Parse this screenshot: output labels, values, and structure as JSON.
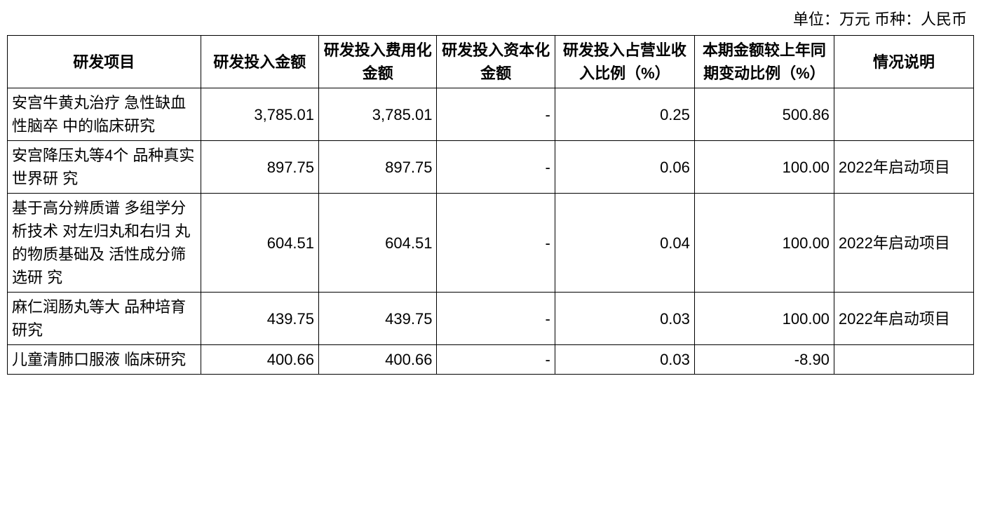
{
  "unit_line": "单位：万元 币种：人民币",
  "table": {
    "columns": [
      "研发项目",
      "研发投入金额",
      "研发投入费用化金额",
      "研发投入资本化金额",
      "研发投入占营业收入比例（%）",
      "本期金额较上年同期变动比例（%）",
      "情况说明"
    ],
    "rows": [
      {
        "project": "安宫牛黄丸治疗 急性缺血性脑卒 中的临床研究",
        "amount": "3,785.01",
        "expense": "3,785.01",
        "capital": "-",
        "ratio": "0.25",
        "change": "500.86",
        "note": ""
      },
      {
        "project": "安宫降压丸等4个 品种真实世界研 究",
        "amount": "897.75",
        "expense": "897.75",
        "capital": "-",
        "ratio": "0.06",
        "change": "100.00",
        "note": "2022年启动项目"
      },
      {
        "project": "基于高分辨质谱 多组学分析技术 对左归丸和右归 丸的物质基础及 活性成分筛选研 究",
        "amount": "604.51",
        "expense": "604.51",
        "capital": "-",
        "ratio": "0.04",
        "change": "100.00",
        "note": "2022年启动项目"
      },
      {
        "project": "麻仁润肠丸等大 品种培育研究",
        "amount": "439.75",
        "expense": "439.75",
        "capital": "-",
        "ratio": "0.03",
        "change": "100.00",
        "note": "2022年启动项目"
      },
      {
        "project": "儿童清肺口服液 临床研究",
        "amount": "400.66",
        "expense": "400.66",
        "capital": "-",
        "ratio": "0.03",
        "change": "-8.90",
        "note": ""
      }
    ]
  }
}
